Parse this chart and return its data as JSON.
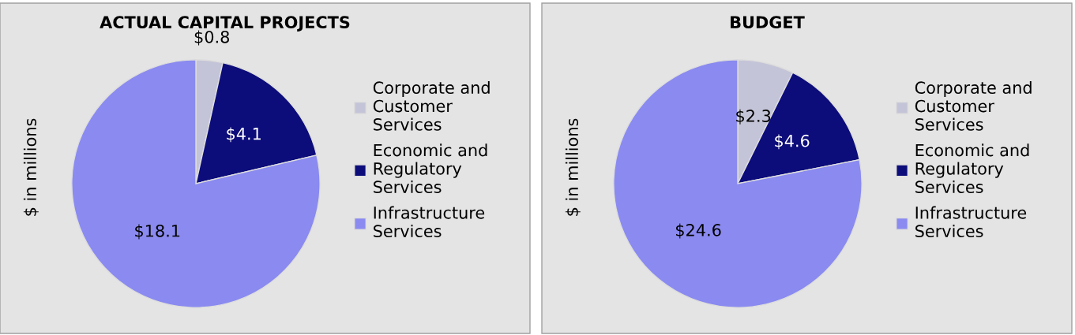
{
  "chart_data": [
    {
      "type": "pie",
      "title": "ACTUAL CAPITAL PROJECTS",
      "ylabel": "$ in millions",
      "categories": [
        "Corporate and Customer Services",
        "Economic and Regulatory Services",
        "Infrastructure Services"
      ],
      "values": [
        0.8,
        4.1,
        18.1
      ],
      "colors": [
        "#c4c4d8",
        "#0c0c7a",
        "#8a8af0"
      ],
      "value_labels": [
        "$0.8",
        "$4.1",
        "$18.1"
      ],
      "legend": "right"
    },
    {
      "type": "pie",
      "title": "BUDGET",
      "ylabel": "$ in millions",
      "categories": [
        "Corporate and Customer Services",
        "Economic and Regulatory Services",
        "Infrastructure Services"
      ],
      "values": [
        2.3,
        4.6,
        24.6
      ],
      "colors": [
        "#c4c4d8",
        "#0c0c7a",
        "#8a8af0"
      ],
      "value_labels": [
        "$2.3",
        "$4.6",
        "$24.6"
      ],
      "legend": "right"
    }
  ]
}
